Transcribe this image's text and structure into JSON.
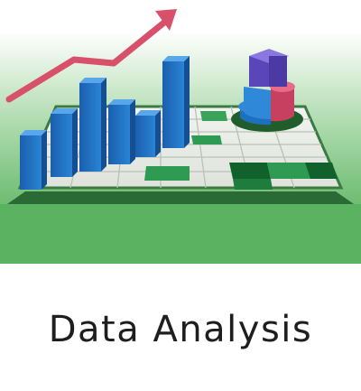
{
  "tile": {
    "caption": "Data Analysis",
    "icon": "data-analysis-illustration"
  },
  "colors": {
    "background_top": "#ffffff",
    "background_bottom": "#59b25f",
    "bar_blue": "#1f70c0",
    "trend_arrow": "#d9506a",
    "pie_blue": "#2f88d8",
    "pie_purple": "#6a55c9",
    "pie_pink": "#d6507a",
    "grid_green": "#2f9b52",
    "caption_text": "#1e1e1e"
  }
}
